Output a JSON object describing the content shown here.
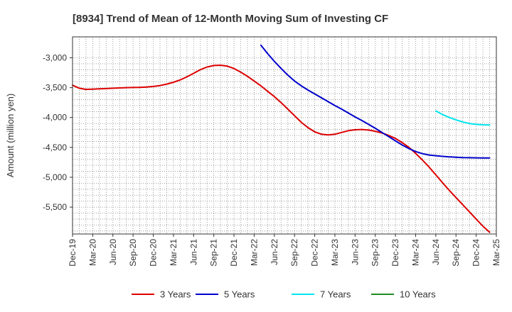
{
  "chart_data": {
    "type": "line",
    "title": "[8934]  Trend of Mean of 12-Month Moving Sum of Investing CF",
    "xlabel": "",
    "ylabel": "Amount (million yen)",
    "ylim": [
      -5950,
      -2650
    ],
    "yticks": [
      -3000,
      -3500,
      -4000,
      -4500,
      -5000,
      -5500
    ],
    "ytick_labels": [
      "-3,000",
      "-3,500",
      "-4,000",
      "-4,500",
      "-5,000",
      "-5,500"
    ],
    "x_start": "Dec-19",
    "x_end": "Mar-25",
    "xtick_labels": [
      "Dec-19",
      "Mar-20",
      "Jun-20",
      "Sep-20",
      "Dec-20",
      "Mar-21",
      "Jun-21",
      "Sep-21",
      "Dec-21",
      "Mar-22",
      "Jun-22",
      "Sep-22",
      "Dec-22",
      "Mar-23",
      "Jun-23",
      "Sep-23",
      "Dec-23",
      "Mar-24",
      "Jun-24",
      "Sep-24",
      "Dec-24",
      "Mar-25"
    ],
    "grid": true,
    "legend_position": "bottom",
    "series": [
      {
        "name": "3 Years",
        "color": "#dd0000",
        "start": "Dec-19",
        "values": [
          -3460,
          -3510,
          -3530,
          -3525,
          -3520,
          -3515,
          -3510,
          -3505,
          -3500,
          -3498,
          -3495,
          -3490,
          -3480,
          -3465,
          -3440,
          -3410,
          -3370,
          -3320,
          -3260,
          -3200,
          -3155,
          -3130,
          -3125,
          -3140,
          -3180,
          -3240,
          -3310,
          -3390,
          -3470,
          -3560,
          -3650,
          -3750,
          -3860,
          -3970,
          -4080,
          -4170,
          -4240,
          -4280,
          -4290,
          -4280,
          -4250,
          -4220,
          -4205,
          -4200,
          -4210,
          -4230,
          -4260,
          -4300,
          -4350,
          -4420,
          -4500,
          -4600,
          -4710,
          -4830,
          -4960,
          -5090,
          -5220,
          -5340,
          -5460,
          -5580,
          -5700,
          -5820,
          -5920
        ]
      },
      {
        "name": "5 Years",
        "color": "#0000cc",
        "start": "Dec-19",
        "values": [
          null,
          null,
          null,
          null,
          null,
          null,
          null,
          null,
          null,
          null,
          null,
          null,
          null,
          null,
          null,
          null,
          null,
          null,
          null,
          null,
          null,
          null,
          null,
          null,
          null,
          null,
          null,
          null,
          -2790,
          -2930,
          -3060,
          -3180,
          -3290,
          -3390,
          -3470,
          -3540,
          -3605,
          -3670,
          -3735,
          -3800,
          -3860,
          -3925,
          -3990,
          -4050,
          -4115,
          -4180,
          -4250,
          -4320,
          -4390,
          -4460,
          -4520,
          -4570,
          -4605,
          -4628,
          -4640,
          -4650,
          -4658,
          -4665,
          -4670,
          -4673,
          -4675,
          -4676,
          -4677
        ]
      },
      {
        "name": "7 Years",
        "color": "#00e5ee",
        "start": "Dec-19",
        "values": [
          null,
          null,
          null,
          null,
          null,
          null,
          null,
          null,
          null,
          null,
          null,
          null,
          null,
          null,
          null,
          null,
          null,
          null,
          null,
          null,
          null,
          null,
          null,
          null,
          null,
          null,
          null,
          null,
          null,
          null,
          null,
          null,
          null,
          null,
          null,
          null,
          null,
          null,
          null,
          null,
          null,
          null,
          null,
          null,
          null,
          null,
          null,
          null,
          null,
          null,
          null,
          null,
          null,
          null,
          -3890,
          -3950,
          -4000,
          -4040,
          -4075,
          -4100,
          -4115,
          -4122,
          -4125
        ]
      },
      {
        "name": "10 Years",
        "color": "#228b22",
        "start": "Dec-19",
        "values": []
      }
    ]
  }
}
